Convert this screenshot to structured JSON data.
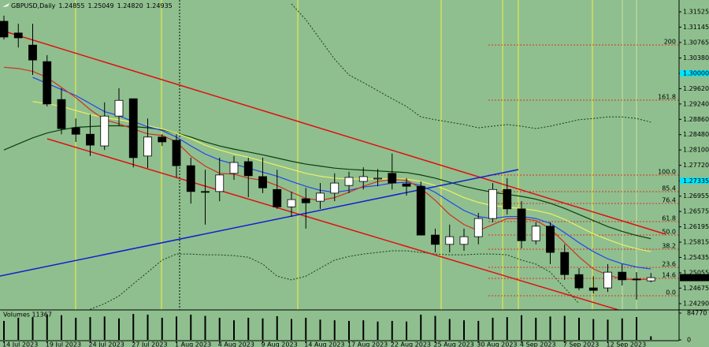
{
  "chart_data": [
    {
      "type": "candlestick",
      "title": "GBPUSD,Daily",
      "header_prices": [
        "1.24855",
        "1.25049",
        "1.24820",
        "1.24935"
      ],
      "x": [
        "14 Jul 2023",
        null,
        null,
        "19 Jul 2023",
        null,
        null,
        "24 Jul 2023",
        null,
        null,
        "27 Jul 2023",
        null,
        null,
        "1 Aug 2023",
        null,
        null,
        "4 Aug 2023",
        null,
        null,
        "9 Aug 2023",
        null,
        null,
        "14 Aug 2023",
        null,
        null,
        "17 Aug 2023",
        null,
        null,
        "22 Aug 2023",
        null,
        null,
        "25 Aug 2023",
        null,
        null,
        "30 Aug 2023",
        null,
        null,
        "4 Sep 2023",
        null,
        null,
        "7 Sep 2023",
        null,
        null,
        "12 Sep 2023",
        null,
        null,
        null
      ],
      "open": [
        1.3129,
        1.31,
        1.307,
        1.3029,
        1.2935,
        1.2865,
        1.2849,
        1.282,
        1.2894,
        1.2937,
        1.2795,
        1.2842,
        1.2834,
        1.2771,
        1.2707,
        1.2707,
        1.2752,
        1.2781,
        1.2744,
        1.2712,
        1.2669,
        1.2689,
        1.2683,
        1.2703,
        1.2722,
        1.2732,
        1.274,
        1.2752,
        1.2726,
        1.272,
        1.2599,
        1.2576,
        1.2576,
        1.2595,
        1.264,
        1.2712,
        1.2664,
        1.2585,
        1.2621,
        1.2556,
        1.2501,
        1.2468,
        1.2468,
        1.2507,
        1.249,
        1.24855
      ],
      "high": [
        1.3143,
        1.3123,
        1.3123,
        1.3045,
        1.2963,
        1.2888,
        1.2898,
        1.2928,
        1.2963,
        1.2937,
        1.2888,
        1.2849,
        1.2849,
        1.2791,
        1.2761,
        1.2791,
        1.2795,
        1.2791,
        1.2791,
        1.2761,
        1.2707,
        1.2716,
        1.2728,
        1.2752,
        1.2756,
        1.2767,
        1.2763,
        1.2801,
        1.274,
        1.2732,
        1.2615,
        1.2625,
        1.2615,
        1.2654,
        1.2728,
        1.274,
        1.2683,
        1.2631,
        1.2631,
        1.2576,
        1.2517,
        1.2497,
        1.2527,
        1.2527,
        1.2507,
        1.25049
      ],
      "low": [
        1.3084,
        1.3064,
        1.2996,
        1.2918,
        1.2849,
        1.283,
        1.2795,
        1.281,
        1.2869,
        1.2767,
        1.2765,
        1.282,
        1.2742,
        1.2677,
        1.2625,
        1.2683,
        1.2736,
        1.2693,
        1.2703,
        1.2664,
        1.2644,
        1.2615,
        1.2664,
        1.2683,
        1.2703,
        1.2712,
        1.272,
        1.2712,
        1.2697,
        1.2599,
        1.2556,
        1.2556,
        1.256,
        1.2576,
        1.2631,
        1.265,
        1.2566,
        1.2576,
        1.2527,
        1.2488,
        1.2462,
        1.2454,
        1.2458,
        1.2474,
        1.2439,
        1.2482
      ],
      "close": [
        1.309,
        1.3088,
        1.3033,
        1.2924,
        1.2863,
        1.2849,
        1.2822,
        1.2894,
        1.2933,
        1.2791,
        1.2842,
        1.283,
        1.2771,
        1.2707,
        1.2705,
        1.2748,
        1.2779,
        1.2746,
        1.2716,
        1.2669,
        1.2687,
        1.2679,
        1.2703,
        1.2728,
        1.2742,
        1.2744,
        1.274,
        1.2728,
        1.272,
        1.2599,
        1.2576,
        1.2595,
        1.2595,
        1.264,
        1.2712,
        1.2664,
        1.2585,
        1.2621,
        1.2556,
        1.2501,
        1.2468,
        1.2462,
        1.2507,
        1.2488,
        1.2488,
        1.24935
      ],
      "color_up": "#ffffff",
      "color_down": "#000000",
      "highlight_color": "#00e5ff",
      "ylim": [
        1.24134,
        1.31818
      ],
      "yticks": [
        1.31525,
        1.31145,
        1.30765,
        {
          "value": 1.3038,
          "label": "1.30380"
        },
        {
          "value": 1.3,
          "label": "1.30000",
          "highlight": true
        },
        {
          "value": 1.2962,
          "label": "1.29620"
        },
        {
          "value": 1.2924,
          "label": "1.29240"
        },
        {
          "value": 1.2886,
          "label": "1.28860"
        },
        {
          "value": 1.2848,
          "label": "1.28480"
        },
        {
          "value": 1.281,
          "label": "1.28100"
        },
        {
          "value": 1.2772,
          "label": "1.27720"
        },
        {
          "value": 1.27335,
          "label": "1.27335",
          "highlight": true
        },
        1.26955,
        1.26575,
        1.26195,
        1.25815,
        1.25435,
        1.25055,
        1.24675,
        {
          "value": 1.2429,
          "label": "1.24290"
        }
      ],
      "series": [
        {
          "color": "#0b3d0b",
          "style": "solid",
          "values": [
            1.281,
            1.2825,
            1.284,
            1.2852,
            1.286,
            1.2866,
            1.2868,
            1.287,
            1.287,
            1.2868,
            1.2865,
            1.286,
            1.2852,
            1.2842,
            1.283,
            1.282,
            1.2812,
            1.2805,
            1.2798,
            1.279,
            1.2782,
            1.2775,
            1.277,
            1.2765,
            1.2762,
            1.276,
            1.2758,
            1.2756,
            1.2754,
            1.2748,
            1.274,
            1.273,
            1.272,
            1.2712,
            1.2705,
            1.27,
            1.2695,
            1.2688,
            1.2678,
            1.2665,
            1.265,
            1.2635,
            1.262,
            1.2608,
            1.2598,
            1.259
          ]
        },
        {
          "color": "#f0f060",
          "style": "solid",
          "values": [
            null,
            null,
            1.293,
            1.2925,
            1.2918,
            1.2908,
            1.2898,
            1.289,
            1.2885,
            1.2878,
            1.287,
            1.2862,
            1.2852,
            1.2838,
            1.2822,
            1.281,
            1.28,
            1.2792,
            1.2782,
            1.2772,
            1.2762,
            1.2752,
            1.2745,
            1.274,
            1.2738,
            1.2738,
            1.2738,
            1.2738,
            1.2738,
            1.2732,
            1.2722,
            1.2708,
            1.2692,
            1.268,
            1.2672,
            1.2668,
            1.2665,
            1.266,
            1.2652,
            1.2638,
            1.262,
            1.2602,
            1.2588,
            1.2575,
            1.2565,
            1.2558
          ]
        },
        {
          "color": "#2244ee",
          "style": "solid",
          "values": [
            null,
            null,
            1.299,
            1.2975,
            1.296,
            1.2945,
            1.2925,
            1.2905,
            1.2895,
            1.288,
            1.2868,
            1.2858,
            1.2842,
            1.282,
            1.28,
            1.2785,
            1.2775,
            1.2765,
            1.2755,
            1.2745,
            1.2732,
            1.272,
            1.271,
            1.2705,
            1.271,
            1.2718,
            1.2722,
            1.2728,
            1.273,
            1.2722,
            1.2705,
            1.2682,
            1.266,
            1.2645,
            1.264,
            1.2645,
            1.2645,
            1.264,
            1.2628,
            1.2605,
            1.258,
            1.2558,
            1.254,
            1.2528,
            1.252,
            1.2515
          ]
        },
        {
          "color": "#d03020",
          "style": "solid",
          "values": [
            1.3015,
            1.3012,
            1.3005,
            1.299,
            1.2965,
            1.294,
            1.291,
            1.2885,
            1.2875,
            1.2862,
            1.285,
            1.2846,
            1.283,
            1.2795,
            1.277,
            1.2752,
            1.275,
            1.274,
            1.2735,
            1.2722,
            1.2705,
            1.269,
            1.2685,
            1.2692,
            1.2705,
            1.272,
            1.2732,
            1.2737,
            1.2735,
            1.2715,
            1.2685,
            1.265,
            1.2625,
            1.261,
            1.2625,
            1.264,
            1.264,
            1.2635,
            1.2615,
            1.258,
            1.2545,
            1.2515,
            1.25,
            1.249,
            1.2488,
            1.249
          ]
        },
        {
          "color": "#1a3a1a",
          "style": "dotted",
          "values": [
            null,
            null,
            null,
            null,
            null,
            null,
            null,
            null,
            null,
            null,
            null,
            null,
            null,
            null,
            null,
            null,
            null,
            null,
            null,
            null,
            1.3172,
            1.3133,
            1.3084,
            1.3035,
            1.2996,
            1.2977,
            1.2957,
            1.2937,
            1.2918,
            1.2892,
            1.2885,
            1.2879,
            1.2873,
            1.2865,
            1.2869,
            1.2873,
            1.2869,
            1.2863,
            1.2869,
            1.2877,
            1.2885,
            1.2888,
            1.2892,
            1.2892,
            1.2888,
            1.2879
          ]
        },
        {
          "color": "#1a3a1a",
          "style": "dotted",
          "values": [
            null,
            null,
            null,
            null,
            null,
            null,
            1.2415,
            1.2429,
            1.2448,
            1.2478,
            1.2507,
            1.2537,
            1.2552,
            1.2552,
            1.255,
            1.255,
            1.2548,
            1.2544,
            1.2527,
            1.2497,
            1.2488,
            1.2497,
            1.2517,
            1.2537,
            1.2546,
            1.2552,
            1.2556,
            1.256,
            1.256,
            1.2556,
            1.2552,
            1.255,
            1.255,
            1.2552,
            1.2552,
            1.255,
            1.2537,
            1.2527,
            1.2507,
            1.2468,
            1.2429,
            null,
            null,
            null,
            null,
            null
          ]
        }
      ],
      "fib_color": "#e03020",
      "fib_levels": [
        {
          "label": "200",
          "price": 1.30703
        },
        {
          "label": "161.8",
          "price": 1.29335
        },
        {
          "label": "100.0",
          "price": 1.27477
        },
        {
          "label": "85.4",
          "price": 1.27066
        },
        {
          "label": "76.4",
          "price": 1.26773
        },
        {
          "label": "61.8",
          "price": 1.26324
        },
        {
          "label": "50.0",
          "price": 1.25991
        },
        {
          "label": "38.2",
          "price": 1.25639
        },
        {
          "label": "23.6",
          "price": 1.2519
        },
        {
          "label": "14.6",
          "price": 1.24916
        },
        {
          "label": "0.0",
          "price": 1.24485
        }
      ]
    },
    {
      "type": "bar",
      "title": "Volumes 11367",
      "color": "#000000",
      "values": [
        60000,
        70000,
        72000,
        80000,
        78000,
        70000,
        72000,
        74000,
        68000,
        82000,
        80000,
        70000,
        74000,
        80000,
        76000,
        70000,
        62000,
        70000,
        68000,
        75000,
        66000,
        70000,
        64000,
        62000,
        60000,
        62000,
        58000,
        60000,
        58000,
        80000,
        76000,
        66000,
        62000,
        60000,
        70000,
        72000,
        78000,
        70000,
        74000,
        76000,
        70000,
        66000,
        64000,
        68000,
        72000,
        11367
      ],
      "ylim": [
        0,
        84770
      ],
      "yticks": [
        0,
        84770
      ]
    }
  ]
}
